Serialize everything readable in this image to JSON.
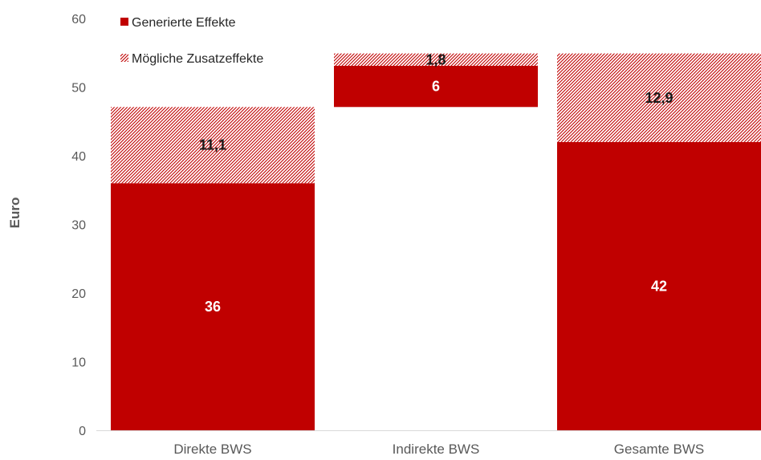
{
  "chart_data": {
    "type": "bar",
    "subtype": "waterfall-stacked",
    "ylabel": "Euro",
    "ylim": [
      0,
      60
    ],
    "yticks": [
      0,
      10,
      20,
      30,
      40,
      50,
      60
    ],
    "grid": false,
    "legend_position": "top-left",
    "categories": [
      "Direkte BWS",
      "Indirekte BWS",
      "Gesamte BWS"
    ],
    "series": [
      {
        "name": "Generierte Effekte",
        "color": "#c00000",
        "pattern": "solid",
        "base": [
          0,
          47.1,
          0
        ],
        "values": [
          36,
          6,
          42
        ],
        "labels": [
          "36",
          "6",
          "42"
        ]
      },
      {
        "name": "Mögliche Zusatzeffekte",
        "color": "#c00000",
        "pattern": "hatched",
        "base": [
          36,
          53.1,
          42
        ],
        "values": [
          11.1,
          1.8,
          12.9
        ],
        "labels": [
          "11,1",
          "1,8",
          "12,9"
        ]
      }
    ]
  }
}
